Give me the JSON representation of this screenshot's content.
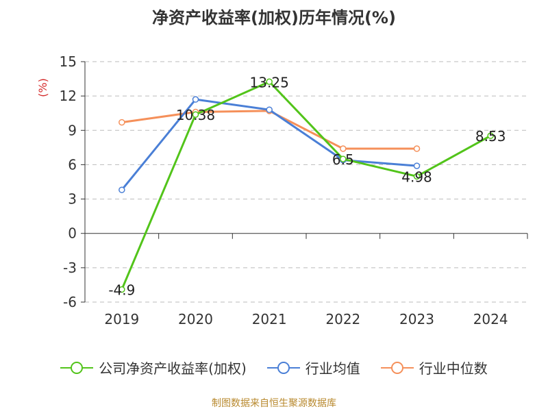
{
  "chart_data": {
    "type": "line",
    "title": "净资产收益率(加权)历年情况(%)",
    "ylabel": "(%)",
    "xlabel": "",
    "categories": [
      "2019",
      "2020",
      "2021",
      "2022",
      "2023",
      "2024"
    ],
    "ylim": [
      -6,
      15
    ],
    "yticks": [
      15,
      12,
      9,
      6,
      3,
      0,
      -3,
      -6
    ],
    "grid": true,
    "legend_position": "bottom",
    "series": [
      {
        "name": "公司净资产收益率(加权)",
        "color": "#52c41a",
        "values": [
          -4.9,
          10.38,
          13.25,
          6.5,
          4.98,
          8.53
        ],
        "labels": [
          "-4.9",
          "10.38",
          "13.25",
          "6.5",
          "4.98",
          "8.53"
        ]
      },
      {
        "name": "行业均值",
        "color": "#4a7fd6",
        "values": [
          3.8,
          11.7,
          10.8,
          6.4,
          5.9,
          null
        ]
      },
      {
        "name": "行业中位数",
        "color": "#f5905a",
        "values": [
          9.7,
          10.6,
          10.7,
          7.4,
          7.4,
          null
        ]
      }
    ]
  },
  "footer": {
    "source": "制图数据来自恒生聚源数据库"
  }
}
